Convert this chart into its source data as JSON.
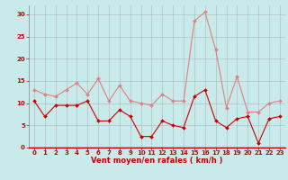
{
  "x": [
    0,
    1,
    2,
    3,
    4,
    5,
    6,
    7,
    8,
    9,
    10,
    11,
    12,
    13,
    14,
    15,
    16,
    17,
    18,
    19,
    20,
    21,
    22,
    23
  ],
  "vent_moyen": [
    10.5,
    7,
    9.5,
    9.5,
    9.5,
    10.5,
    6,
    6,
    8.5,
    7,
    2.5,
    2.5,
    6,
    5,
    4.5,
    11.5,
    13,
    6,
    4.5,
    6.5,
    7,
    1,
    6.5,
    7
  ],
  "rafales": [
    13,
    12,
    11.5,
    13,
    14.5,
    12,
    15.5,
    10.5,
    14,
    10.5,
    10,
    9.5,
    12,
    10.5,
    10.5,
    28.5,
    30.5,
    22,
    9,
    16,
    8,
    8,
    10,
    10.5
  ],
  "color_moyen": "#cc0000",
  "color_rafales": "#e08080",
  "bg_color": "#c8eaea",
  "grid_color": "#aaaaaa",
  "xlabel": "Vent moyen/en rafales ( km/h )",
  "ylim": [
    0,
    32
  ],
  "xlim": [
    -0.5,
    23.5
  ],
  "yticks": [
    0,
    5,
    10,
    15,
    20,
    25,
    30
  ],
  "xticks": [
    0,
    1,
    2,
    3,
    4,
    5,
    6,
    7,
    8,
    9,
    10,
    11,
    12,
    13,
    14,
    15,
    16,
    17,
    18,
    19,
    20,
    21,
    22,
    23
  ],
  "tick_fontsize": 5,
  "xlabel_fontsize": 6,
  "linewidth": 0.8,
  "markersize": 2.0
}
